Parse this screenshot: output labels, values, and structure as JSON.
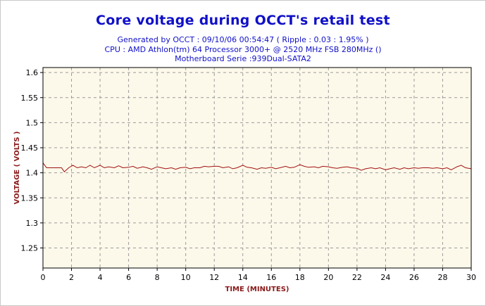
{
  "header": {
    "title": "Core voltage during OCCT's retail test",
    "subtitle_lines": [
      "Generated by OCCT : 09/10/06 00:54:47 ( Ripple : 0.03 : 1.95% )",
      "CPU : AMD Athlon(tm) 64 Processor 3000+ @ 2520 MHz FSB 280MHz ()",
      "Motherboard Serie :939Dual-SATA2"
    ]
  },
  "colors": {
    "title": "#1010c8",
    "axis_label": "#8b1a1a",
    "series": "#a01010",
    "plot_background": "#fdf9ea",
    "grid": "#9a9a9a"
  },
  "chart_data": {
    "type": "line",
    "title": "Core voltage during OCCT's retail test",
    "xlabel": "TIME (MINUTES)",
    "ylabel": "VOLTAGE ( VOLTS )",
    "xlim": [
      0,
      30
    ],
    "ylim": [
      1.21,
      1.61
    ],
    "x_ticks": [
      0,
      2,
      4,
      6,
      8,
      10,
      12,
      14,
      16,
      18,
      20,
      22,
      24,
      26,
      28,
      30
    ],
    "y_ticks": [
      1.25,
      1.3,
      1.35,
      1.4,
      1.45,
      1.5,
      1.55,
      1.6
    ],
    "grid": true,
    "legend": "none",
    "series": [
      {
        "x": [
          0,
          0.25,
          0.5,
          1.0,
          1.3,
          1.5,
          1.8,
          2.1,
          2.4,
          2.7,
          3.0,
          3.3,
          3.6,
          4.0,
          4.3,
          4.6,
          5.0,
          5.3,
          5.6,
          6.0,
          6.3,
          6.6,
          7.0,
          7.3,
          7.6,
          8.0,
          8.3,
          8.6,
          9.0,
          9.3,
          9.6,
          10.0,
          10.3,
          10.6,
          11.0,
          11.3,
          11.6,
          12.0,
          12.3,
          12.6,
          13.0,
          13.3,
          13.6,
          14.0,
          14.3,
          14.6,
          15.0,
          15.3,
          15.6,
          16.0,
          16.3,
          16.6,
          17.0,
          17.3,
          17.6,
          18.0,
          18.3,
          18.6,
          19.0,
          19.3,
          19.6,
          20.0,
          20.3,
          20.6,
          21.0,
          21.3,
          21.6,
          22.0,
          22.3,
          22.6,
          23.0,
          23.3,
          23.6,
          24.0,
          24.3,
          24.6,
          25.0,
          25.3,
          25.6,
          26.0,
          26.3,
          26.6,
          27.0,
          27.3,
          27.6,
          28.0,
          28.3,
          28.6,
          29.0,
          29.3,
          29.6,
          30.0
        ],
        "values": [
          1.42,
          1.41,
          1.41,
          1.41,
          1.41,
          1.402,
          1.41,
          1.415,
          1.41,
          1.412,
          1.41,
          1.415,
          1.41,
          1.415,
          1.41,
          1.412,
          1.41,
          1.414,
          1.41,
          1.411,
          1.413,
          1.409,
          1.412,
          1.41,
          1.407,
          1.412,
          1.41,
          1.408,
          1.41,
          1.407,
          1.41,
          1.411,
          1.408,
          1.41,
          1.41,
          1.413,
          1.412,
          1.413,
          1.413,
          1.41,
          1.412,
          1.408,
          1.41,
          1.415,
          1.411,
          1.41,
          1.407,
          1.41,
          1.409,
          1.411,
          1.408,
          1.41,
          1.413,
          1.41,
          1.411,
          1.416,
          1.413,
          1.411,
          1.412,
          1.41,
          1.413,
          1.412,
          1.41,
          1.409,
          1.411,
          1.412,
          1.41,
          1.409,
          1.405,
          1.408,
          1.41,
          1.408,
          1.41,
          1.406,
          1.408,
          1.41,
          1.407,
          1.41,
          1.408,
          1.41,
          1.409,
          1.41,
          1.41,
          1.409,
          1.41,
          1.408,
          1.41,
          1.406,
          1.412,
          1.415,
          1.41,
          1.408
        ]
      }
    ]
  }
}
